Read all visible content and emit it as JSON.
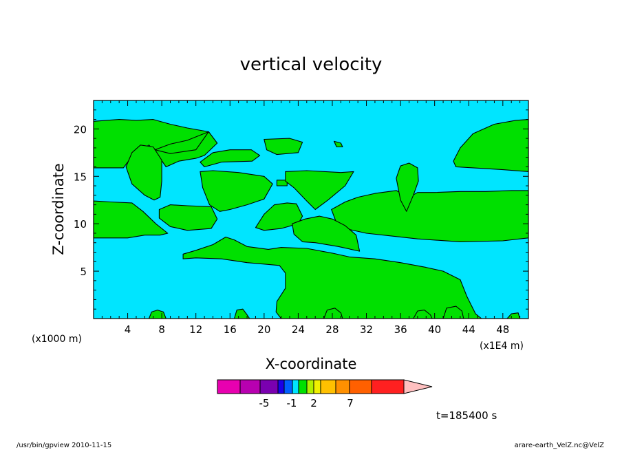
{
  "chart_data": {
    "type": "heatmap",
    "title": "vertical velocity",
    "xlabel": "X-coordinate",
    "ylabel": "Z-coordinate",
    "x_scale_label": "(x1E4 m)",
    "y_scale_label": "(x1000 m)",
    "xlim": [
      0,
      51
    ],
    "ylim": [
      0,
      23
    ],
    "x_ticks": [
      4,
      8,
      12,
      16,
      20,
      24,
      28,
      32,
      36,
      40,
      44,
      48
    ],
    "y_ticks": [
      5,
      10,
      15,
      20
    ],
    "background_level_color": "#00e5ff",
    "region_color": "#00e000",
    "contour_color": "#000000",
    "regions": [
      {
        "name": "top-left-band",
        "points": [
          [
            0,
            20.8
          ],
          [
            3,
            21
          ],
          [
            5,
            20.9
          ],
          [
            7,
            21
          ],
          [
            9,
            20.5
          ],
          [
            11,
            20.1
          ],
          [
            13.5,
            19.7
          ],
          [
            14.5,
            18.5
          ],
          [
            13,
            17.2
          ],
          [
            12,
            16.9
          ],
          [
            10,
            16.6
          ],
          [
            8.5,
            16
          ],
          [
            7.5,
            17.3
          ],
          [
            6.5,
            18.3
          ],
          [
            5,
            17.5
          ],
          [
            4,
            16.5
          ],
          [
            3.5,
            15.9
          ],
          [
            0,
            15.9
          ]
        ]
      },
      {
        "name": "upper-left-blob",
        "points": [
          [
            3.8,
            16
          ],
          [
            4.5,
            17.5
          ],
          [
            5.5,
            18.3
          ],
          [
            7,
            18.1
          ],
          [
            8,
            16.7
          ],
          [
            8,
            14.5
          ],
          [
            7.8,
            12.8
          ],
          [
            7.1,
            12.5
          ],
          [
            6,
            13
          ],
          [
            4.5,
            14.2
          ]
        ]
      },
      {
        "name": "thin-diagonal-band",
        "points": [
          [
            7.2,
            17.8
          ],
          [
            9,
            18.4
          ],
          [
            11,
            18.8
          ],
          [
            13.5,
            19.7
          ],
          [
            12,
            17.8
          ],
          [
            9,
            17.4
          ]
        ]
      },
      {
        "name": "top-mid-patch-a",
        "points": [
          [
            12.5,
            16.5
          ],
          [
            14,
            17.5
          ],
          [
            16,
            17.8
          ],
          [
            18.5,
            17.8
          ],
          [
            19.5,
            17.2
          ],
          [
            18.6,
            16.6
          ],
          [
            15,
            16.5
          ],
          [
            13,
            16
          ]
        ]
      },
      {
        "name": "top-mid-patch-b",
        "points": [
          [
            20,
            18.9
          ],
          [
            23,
            19
          ],
          [
            24.5,
            18.6
          ],
          [
            24,
            17.5
          ],
          [
            21.5,
            17.3
          ],
          [
            20.3,
            17.8
          ]
        ]
      },
      {
        "name": "small-dot-a",
        "points": [
          [
            28.2,
            18.7
          ],
          [
            29,
            18.5
          ],
          [
            29.2,
            18.1
          ],
          [
            28.5,
            18.1
          ]
        ]
      },
      {
        "name": "upper-right-patch",
        "points": [
          [
            42.2,
            16.6
          ],
          [
            43,
            18
          ],
          [
            44.5,
            19.5
          ],
          [
            47,
            20.5
          ],
          [
            49.5,
            20.9
          ],
          [
            51,
            21
          ],
          [
            51,
            15.5
          ],
          [
            48,
            15.7
          ],
          [
            44.5,
            15.9
          ],
          [
            42.5,
            16
          ]
        ]
      },
      {
        "name": "left-middle-band",
        "points": [
          [
            0,
            12.4
          ],
          [
            2,
            12.3
          ],
          [
            4.5,
            12.2
          ],
          [
            5.8,
            11.3
          ],
          [
            7.3,
            10
          ],
          [
            8.7,
            9
          ],
          [
            7.8,
            8.8
          ],
          [
            6,
            8.8
          ],
          [
            4,
            8.5
          ],
          [
            0,
            8.5
          ]
        ]
      },
      {
        "name": "left-middle-island",
        "points": [
          [
            7.7,
            11.5
          ],
          [
            9,
            12
          ],
          [
            11,
            11.9
          ],
          [
            13.8,
            11.8
          ],
          [
            14.5,
            10.5
          ],
          [
            13.8,
            9.5
          ],
          [
            11,
            9.3
          ],
          [
            9,
            9.7
          ],
          [
            7.7,
            10.6
          ]
        ]
      },
      {
        "name": "center-wedge",
        "points": [
          [
            12.5,
            15.5
          ],
          [
            14,
            15.6
          ],
          [
            17,
            15.4
          ],
          [
            20,
            15
          ],
          [
            21,
            14.2
          ],
          [
            20,
            12.6
          ],
          [
            18,
            12
          ],
          [
            16,
            11.5
          ],
          [
            14.8,
            11.3
          ],
          [
            13.6,
            12
          ],
          [
            12.8,
            13.8
          ]
        ]
      },
      {
        "name": "small-dot-b",
        "points": [
          [
            21.5,
            14.6
          ],
          [
            22.7,
            14.6
          ],
          [
            22.7,
            14
          ],
          [
            21.5,
            14
          ]
        ]
      },
      {
        "name": "center-triangle",
        "points": [
          [
            22.5,
            15.5
          ],
          [
            25,
            15.6
          ],
          [
            29,
            15.4
          ],
          [
            30.5,
            15.5
          ],
          [
            29.5,
            14
          ],
          [
            27.5,
            12.5
          ],
          [
            26,
            11.5
          ],
          [
            25,
            12.4
          ],
          [
            23.5,
            13.8
          ],
          [
            22.5,
            14.5
          ]
        ]
      },
      {
        "name": "center-small-diamond",
        "points": [
          [
            19,
            9.6
          ],
          [
            20,
            11
          ],
          [
            21.2,
            12
          ],
          [
            22.7,
            12.2
          ],
          [
            23.8,
            12.1
          ],
          [
            24.5,
            10.8
          ],
          [
            24,
            10
          ],
          [
            22,
            9.5
          ],
          [
            20,
            9.3
          ]
        ]
      },
      {
        "name": "right-long-band",
        "points": [
          [
            27.9,
            11.5
          ],
          [
            29.5,
            12.3
          ],
          [
            31,
            12.8
          ],
          [
            33,
            13.2
          ],
          [
            35.5,
            13.5
          ],
          [
            37,
            12.8
          ],
          [
            38,
            13.3
          ],
          [
            40,
            13.3
          ],
          [
            43,
            13.4
          ],
          [
            46,
            13.4
          ],
          [
            49,
            13.5
          ],
          [
            51,
            13.5
          ],
          [
            51,
            8.5
          ],
          [
            48,
            8.2
          ],
          [
            43,
            8.1
          ],
          [
            38,
            8.4
          ],
          [
            35,
            8.7
          ],
          [
            32,
            9
          ],
          [
            29.5,
            9.5
          ],
          [
            28.4,
            10.3
          ]
        ]
      },
      {
        "name": "right-tall-blob",
        "points": [
          [
            35.5,
            14.8
          ],
          [
            36,
            16.1
          ],
          [
            37,
            16.4
          ],
          [
            38,
            15.9
          ],
          [
            38.1,
            14.5
          ],
          [
            37.5,
            13
          ],
          [
            36.7,
            11.3
          ],
          [
            36,
            12.5
          ]
        ]
      },
      {
        "name": "center-thin-lens",
        "points": [
          [
            23.3,
            10
          ],
          [
            24.8,
            10.5
          ],
          [
            26.5,
            10.8
          ],
          [
            28,
            10.5
          ],
          [
            29.5,
            9.8
          ],
          [
            30.8,
            8.8
          ],
          [
            31.2,
            7.1
          ],
          [
            28.7,
            7.6
          ],
          [
            26,
            8
          ],
          [
            24.5,
            8.1
          ],
          [
            23.5,
            8.9
          ]
        ]
      },
      {
        "name": "lower-big-region",
        "points": [
          [
            10.5,
            6.8
          ],
          [
            12,
            7.2
          ],
          [
            14,
            7.8
          ],
          [
            15.5,
            8.6
          ],
          [
            16.5,
            8.3
          ],
          [
            18,
            7.6
          ],
          [
            20.5,
            7.3
          ],
          [
            22,
            7.5
          ],
          [
            25,
            7.4
          ],
          [
            28,
            6.9
          ],
          [
            30,
            6.5
          ],
          [
            33,
            6.3
          ],
          [
            36,
            5.9
          ],
          [
            39,
            5.4
          ],
          [
            41,
            5
          ],
          [
            43,
            4.1
          ],
          [
            43.8,
            2.3
          ],
          [
            44.8,
            0.5
          ],
          [
            45.5,
            0
          ],
          [
            22,
            0
          ],
          [
            21.4,
            0.7
          ],
          [
            21.5,
            1.8
          ],
          [
            22.5,
            3.2
          ],
          [
            22.5,
            4.8
          ],
          [
            21.8,
            5.6
          ],
          [
            18,
            5.9
          ],
          [
            15,
            6.3
          ],
          [
            12,
            6.4
          ],
          [
            10.5,
            6.3
          ]
        ]
      },
      {
        "name": "bottom-bump-a",
        "points": [
          [
            6.5,
            0
          ],
          [
            6.8,
            0.7
          ],
          [
            7.5,
            0.9
          ],
          [
            8.2,
            0.7
          ],
          [
            8.5,
            0
          ]
        ]
      },
      {
        "name": "bottom-bump-b",
        "points": [
          [
            16.5,
            0
          ],
          [
            16.8,
            0.9
          ],
          [
            17.5,
            1
          ],
          [
            18,
            0.4
          ],
          [
            18.3,
            0
          ]
        ]
      },
      {
        "name": "bottom-bump-c",
        "points": [
          [
            27,
            0
          ],
          [
            27.4,
            0.9
          ],
          [
            28.3,
            1.1
          ],
          [
            29,
            0.6
          ],
          [
            29.2,
            0
          ]
        ]
      },
      {
        "name": "bottom-bump-d",
        "points": [
          [
            37.5,
            0
          ],
          [
            38,
            0.8
          ],
          [
            38.8,
            0.9
          ],
          [
            39.5,
            0.4
          ],
          [
            39.7,
            0
          ]
        ]
      },
      {
        "name": "bottom-bump-e",
        "points": [
          [
            41,
            0
          ],
          [
            41.4,
            1.1
          ],
          [
            42.5,
            1.3
          ],
          [
            43.2,
            0.8
          ],
          [
            43.4,
            0
          ]
        ]
      },
      {
        "name": "bottom-bump-f",
        "points": [
          [
            48.5,
            0
          ],
          [
            49,
            0.5
          ],
          [
            49.8,
            0.6
          ],
          [
            50,
            0
          ]
        ]
      }
    ],
    "colorbar": {
      "colors": [
        "#e800b0",
        "#b800b0",
        "#7a00b0",
        "#1a00e8",
        "#0060ff",
        "#00e5ff",
        "#00e000",
        "#b0f000",
        "#f0f000",
        "#ffc000",
        "#ff9000",
        "#ff6000",
        "#ff2020",
        "#ff8080",
        "#ffc0c0"
      ],
      "tick_labels": [
        "-5",
        "-1",
        "2",
        "7"
      ]
    },
    "time_label": "t=185400 s",
    "footer_left": "/usr/bin/gpview  2010-11-15",
    "footer_right": "arare-earth_VelZ.nc@VelZ"
  }
}
